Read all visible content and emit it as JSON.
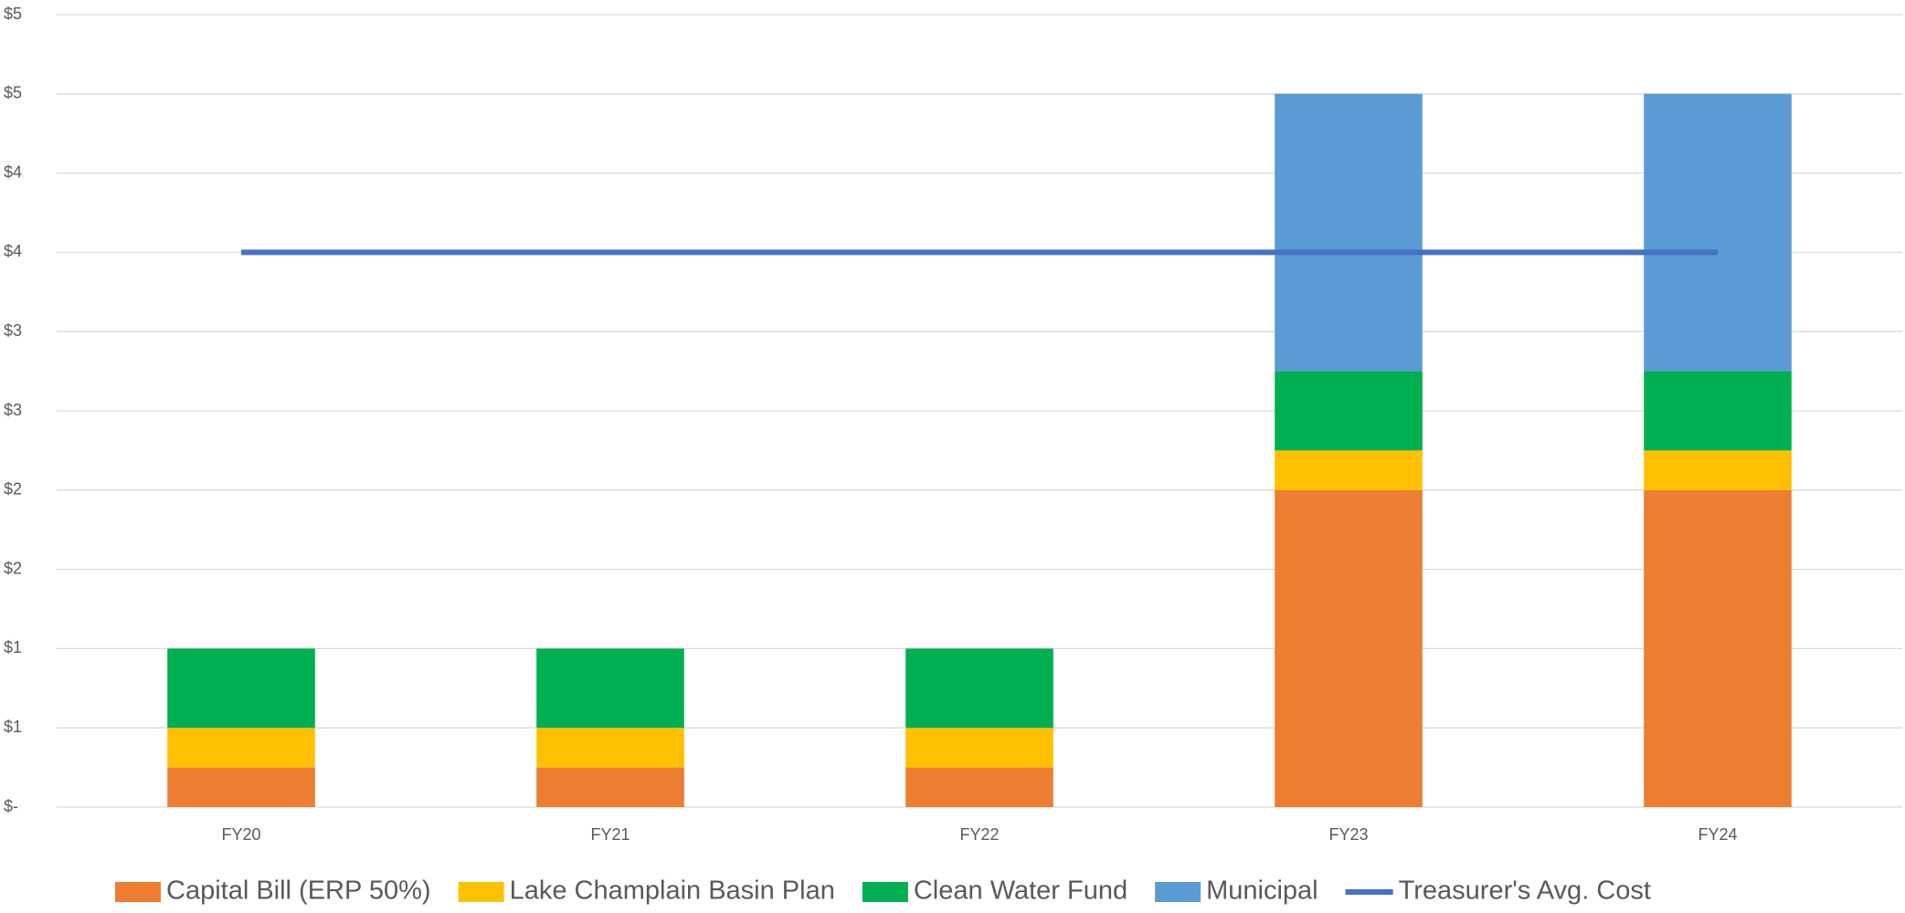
{
  "chart_data": {
    "type": "bar",
    "stacked": true,
    "categories": [
      "FY20",
      "FY21",
      "FY22",
      "FY23",
      "FY24"
    ],
    "series": [
      {
        "name": "Capital Bill (ERP 50%)",
        "color": "#ed7d31",
        "values": [
          0.25,
          0.25,
          0.25,
          2.0,
          2.0
        ]
      },
      {
        "name": "Lake Champlain Basin Plan",
        "color": "#ffc000",
        "values": [
          0.25,
          0.25,
          0.25,
          0.25,
          0.25
        ]
      },
      {
        "name": "Clean Water Fund",
        "color": "#00b050",
        "values": [
          0.5,
          0.5,
          0.5,
          0.5,
          0.5
        ]
      },
      {
        "name": "Municipal",
        "color": "#5b9bd5",
        "values": [
          0,
          0,
          0,
          1.75,
          1.75
        ]
      },
      {
        "name": "Treasurer's Avg. Cost",
        "color": "#4472c4",
        "type": "line",
        "values": [
          3.5,
          3.5,
          3.5,
          3.5,
          3.5
        ]
      }
    ],
    "ylim": [
      0,
      5
    ],
    "yticks": [
      {
        "value": 0,
        "label": "$-"
      },
      {
        "value": 0.5,
        "label": "$1"
      },
      {
        "value": 1,
        "label": "$1"
      },
      {
        "value": 1.5,
        "label": "$2"
      },
      {
        "value": 2,
        "label": "$2"
      },
      {
        "value": 2.5,
        "label": "$3"
      },
      {
        "value": 3,
        "label": "$3"
      },
      {
        "value": 3.5,
        "label": "$4"
      },
      {
        "value": 4,
        "label": "$4"
      },
      {
        "value": 4.5,
        "label": "$5"
      },
      {
        "value": 5,
        "label": "$5"
      }
    ],
    "grid": true,
    "legend": "bottom"
  }
}
